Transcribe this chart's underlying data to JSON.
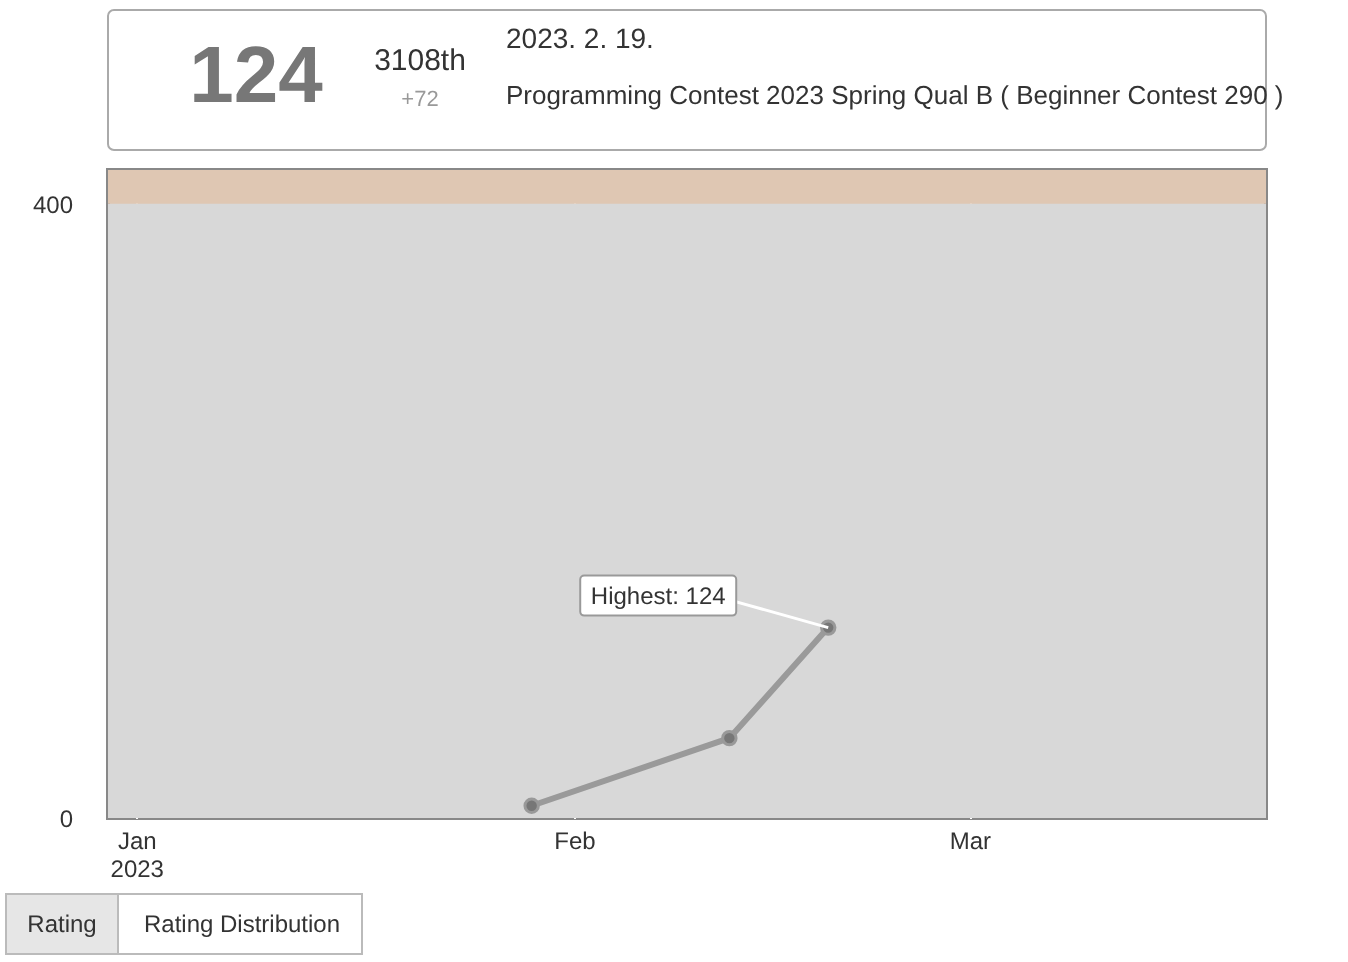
{
  "chart_data": {
    "type": "line",
    "x": [
      "2023-01-29",
      "2023-02-12",
      "2023-02-19"
    ],
    "series": [
      {
        "color": "#9a9a9a",
        "values": [
          8,
          52,
          124
        ]
      }
    ],
    "marker": "circle",
    "line_style": "solid",
    "grid": "x",
    "xlim": [
      "2022-12-30",
      "2023-03-22"
    ],
    "xticks": [
      {
        "value": "2023-01-01",
        "label": "Jan\n2023"
      },
      {
        "value": "2023-02-01",
        "label": "Feb"
      },
      {
        "value": "2023-03-01",
        "label": "Mar"
      }
    ],
    "ylim": [
      0,
      422
    ],
    "yticks": [
      0,
      400
    ],
    "bands": [
      {
        "axis": "y",
        "from": 0,
        "to": 400,
        "label": null,
        "color": "#d8d8d8"
      },
      {
        "axis": "y",
        "from": 400,
        "to": 422,
        "label": null,
        "color": "#dfc7b3"
      }
    ],
    "annotations": [
      "124",
      "3108th",
      "+72",
      "2023. 2. 19.",
      "Programming Contest 2023 Spring Qual B ( Beginner Contest 290 )",
      "Rating",
      "Rating Distribution",
      {
        "text": "Highest: 124",
        "x": "2023-02-19",
        "y": 124
      }
    ]
  }
}
